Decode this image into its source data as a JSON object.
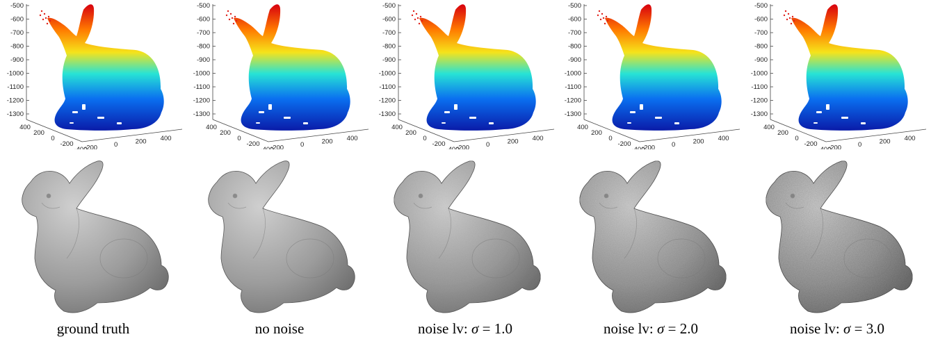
{
  "figure": {
    "panels": [
      {
        "caption": "ground truth",
        "noise_sigma": null
      },
      {
        "caption": "no noise",
        "noise_sigma": 0
      },
      {
        "caption_prefix": "noise lv: ",
        "caption_symbol": "σ",
        "caption_value": " = 1.0",
        "noise_sigma": 1.0
      },
      {
        "caption_prefix": "noise lv: ",
        "caption_symbol": "σ",
        "caption_value": " = 2.0",
        "noise_sigma": 2.0
      },
      {
        "caption_prefix": "noise lv: ",
        "caption_symbol": "σ",
        "caption_value": " = 3.0",
        "noise_sigma": 3.0
      }
    ]
  },
  "chart_data": {
    "type": "scatter",
    "z_ticks": [
      "-500",
      "-600",
      "-700",
      "-800",
      "-900",
      "-1000",
      "-1100",
      "-1200",
      "-1300"
    ],
    "x_ticks": [
      "400",
      "200",
      "0",
      "-200",
      "-400"
    ],
    "y_ticks": [
      "-200",
      "0",
      "200",
      "400"
    ],
    "colormap": [
      "#d7000f",
      "#ff7a00",
      "#f6e31a",
      "#27e3d5",
      "#0a6ff0",
      "#0a1ba8"
    ]
  },
  "colors": {
    "mesh_light": "#cfcfcf",
    "mesh_dark": "#6b6b6b",
    "mesh_outline": "#555555"
  }
}
